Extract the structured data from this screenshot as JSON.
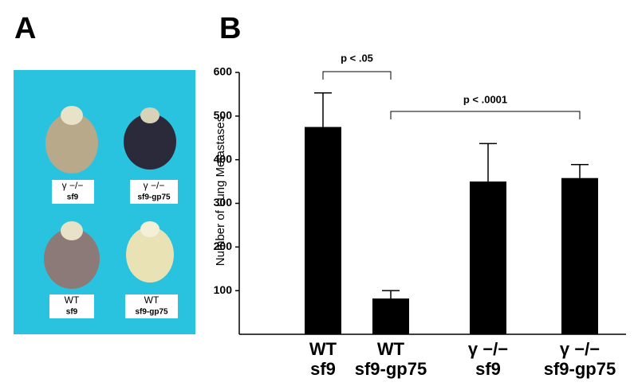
{
  "panels": {
    "a_label": "A",
    "b_label": "B"
  },
  "photo": {
    "labels": [
      [
        "γ −/−",
        "sf9"
      ],
      [
        "γ −/−",
        "sf9-gp75"
      ],
      [
        "WT",
        "sf9"
      ],
      [
        "WT",
        "sf9-gp75"
      ]
    ]
  },
  "chart_data": {
    "type": "bar",
    "ylabel": "Number of Lung Metastases",
    "categories": [
      [
        "WT",
        "sf9"
      ],
      [
        "WT",
        "sf9-gp75"
      ],
      [
        "γ −/−",
        "sf9"
      ],
      [
        "γ −/−",
        "sf9-gp75"
      ]
    ],
    "values": [
      475,
      82,
      350,
      358
    ],
    "errors": [
      78,
      18,
      87,
      31
    ],
    "color": "#000000",
    "ylim": [
      0,
      600
    ],
    "yticks": [
      100,
      200,
      300,
      400,
      500,
      600
    ],
    "annotations": [
      "p < .05",
      "p < .0001"
    ]
  }
}
